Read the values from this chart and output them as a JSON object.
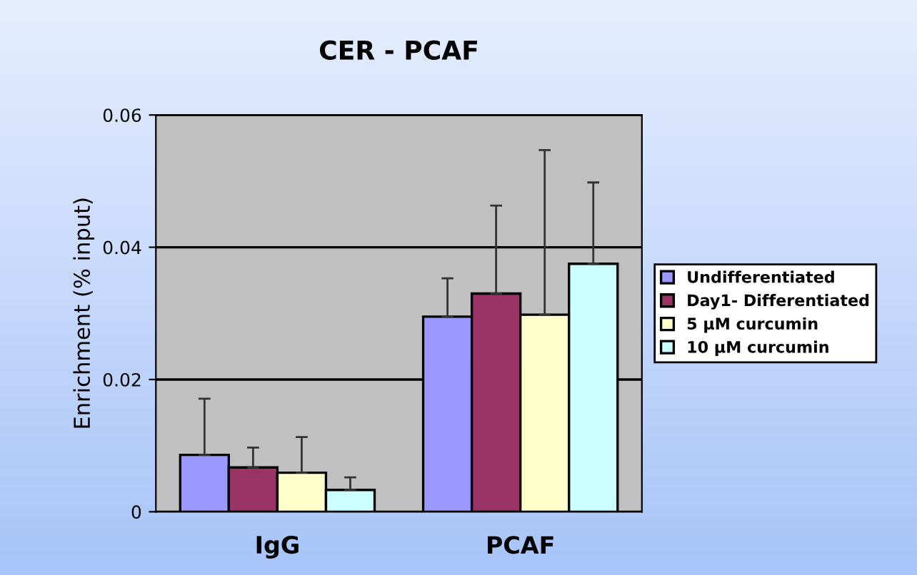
{
  "chart_data": {
    "type": "bar",
    "title": "CER - PCAF",
    "ylabel": "Enrichment (% input)",
    "categories": [
      "IgG",
      "PCAF"
    ],
    "series": [
      {
        "name": "Undifferentiated",
        "color": "#9999ff",
        "values": [
          0.0086,
          0.0295
        ],
        "errors": [
          [
            0.0086,
            0.0171
          ],
          [
            0.0295,
            0.0353
          ]
        ]
      },
      {
        "name": "Day1- Differentiated",
        "color": "#993366",
        "values": [
          0.0067,
          0.033
        ],
        "errors": [
          [
            0.0067,
            0.0097
          ],
          [
            0.033,
            0.0463
          ]
        ]
      },
      {
        "name": "5 µM curcumin",
        "color": "#ffffcc",
        "values": [
          0.0059,
          0.0298
        ],
        "errors": [
          [
            0.0059,
            0.0113
          ],
          [
            0.0298,
            0.0547
          ]
        ]
      },
      {
        "name": "10 µM curcumin",
        "color": "#ccffff",
        "values": [
          0.0033,
          0.0375
        ],
        "errors": [
          [
            0.0033,
            0.0052
          ],
          [
            0.0375,
            0.0498
          ]
        ]
      }
    ],
    "ylim": [
      0,
      0.06
    ],
    "yticks": [
      {
        "value": 0,
        "label": "0"
      },
      {
        "value": 0.02,
        "label": "0.02"
      },
      {
        "value": 0.04,
        "label": "0.04"
      },
      {
        "value": 0.06,
        "label": "0.06"
      }
    ],
    "grid": "y",
    "legend": "right"
  }
}
